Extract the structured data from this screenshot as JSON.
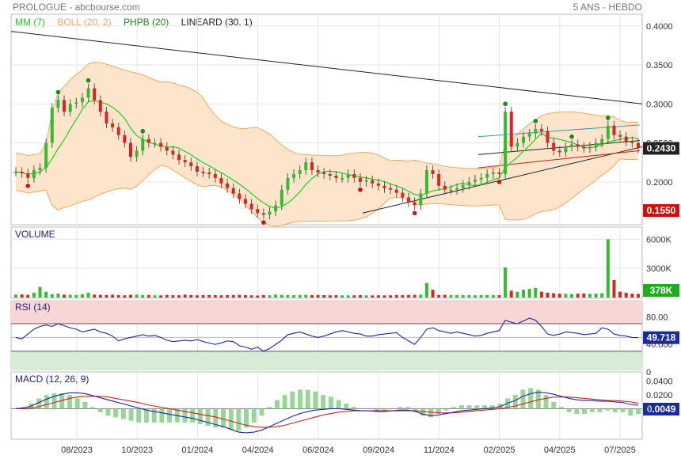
{
  "header": {
    "title": "PROLOGUE - abcbourse.com",
    "period": "5 ANS - HEBDO"
  },
  "legend": [
    {
      "label": "MM (7)",
      "color": "#22cc22"
    },
    {
      "label": "BOLL (20, 2)",
      "color": "#f0a860"
    },
    {
      "label": "PHPB (20)",
      "color": "#1a8a1a"
    },
    {
      "label": "LINEARD (30, 1)",
      "color": "#222222"
    }
  ],
  "colors": {
    "up": "#33bb33",
    "down": "#dd2222",
    "boll_fill": "#fde5cc",
    "boll_line": "#f0a860",
    "ma": "#22cc22",
    "trend": "#222222",
    "rsi": "#1a2aa0",
    "macd": "#1a2aa0",
    "signal": "#cc2222"
  },
  "chart_data": [
    {
      "type": "candlestick",
      "title": "PROLOGUE",
      "x": [
        "08/2023",
        "10/2023",
        "01/2024",
        "04/2024",
        "06/2024",
        "09/2024",
        "11/2024",
        "02/2025",
        "04/2025",
        "07/2025"
      ],
      "y_ticks": [
        "0.4000",
        "0.3500",
        "0.3000",
        "0.2500",
        "0.2000"
      ],
      "ylim": [
        0.145,
        0.415
      ],
      "last_price": "0.2430",
      "low_marker": "0.1550",
      "series_close": [
        0.213,
        0.211,
        0.205,
        0.215,
        0.218,
        0.25,
        0.295,
        0.305,
        0.29,
        0.3,
        0.302,
        0.308,
        0.32,
        0.305,
        0.29,
        0.275,
        0.27,
        0.26,
        0.25,
        0.232,
        0.24,
        0.255,
        0.25,
        0.25,
        0.245,
        0.24,
        0.235,
        0.228,
        0.225,
        0.22,
        0.213,
        0.212,
        0.21,
        0.205,
        0.198,
        0.192,
        0.185,
        0.178,
        0.172,
        0.165,
        0.16,
        0.158,
        0.162,
        0.17,
        0.19,
        0.205,
        0.21,
        0.215,
        0.225,
        0.215,
        0.212,
        0.21,
        0.208,
        0.205,
        0.205,
        0.21,
        0.205,
        0.2,
        0.202,
        0.198,
        0.195,
        0.192,
        0.19,
        0.186,
        0.18,
        0.174,
        0.17,
        0.185,
        0.215,
        0.21,
        0.195,
        0.19,
        0.19,
        0.192,
        0.196,
        0.2,
        0.203,
        0.205,
        0.21,
        0.212,
        0.21,
        0.29,
        0.245,
        0.25,
        0.258,
        0.262,
        0.268,
        0.265,
        0.25,
        0.24,
        0.238,
        0.245,
        0.248,
        0.245,
        0.243,
        0.245,
        0.25,
        0.255,
        0.272,
        0.26,
        0.258,
        0.252,
        0.25,
        0.243
      ],
      "y_axis_label": "",
      "x_axis_label": ""
    },
    {
      "type": "bar",
      "title": "VOLUME",
      "y_ticks": [
        "6000K",
        "3000K"
      ],
      "last_value": "378K",
      "values_k": [
        300,
        320,
        280,
        500,
        1100,
        600,
        350,
        420,
        300,
        280,
        260,
        350,
        500,
        300,
        280,
        260,
        300,
        250,
        230,
        280,
        300,
        250,
        260,
        230,
        220,
        260,
        240,
        230,
        300,
        260,
        230,
        250,
        260,
        250,
        230,
        240,
        260,
        280,
        250,
        230,
        210,
        250,
        230,
        300,
        280,
        250,
        240,
        260,
        280,
        240,
        260,
        250,
        230,
        240,
        230,
        220,
        230,
        240,
        230,
        220,
        230,
        220,
        230,
        260,
        250,
        270,
        280,
        300,
        1500,
        800,
        260,
        280,
        240,
        260,
        250,
        240,
        230,
        250,
        260,
        250,
        240,
        3100,
        700,
        600,
        800,
        900,
        1000,
        600,
        500,
        450,
        400,
        380,
        360,
        400,
        420,
        380,
        400,
        450,
        6000,
        1800,
        600,
        500,
        400,
        378
      ]
    },
    {
      "type": "line",
      "title": "RSI (14)",
      "y_ticks": [
        "80.00",
        "40.000",
        "0"
      ],
      "ylim": [
        0,
        100
      ],
      "overbought": 70,
      "oversold": 30,
      "last_value": "49.718",
      "values": [
        50,
        48,
        55,
        62,
        66,
        68,
        66,
        70,
        67,
        64,
        62,
        58,
        60,
        62,
        58,
        56,
        52,
        45,
        48,
        50,
        52,
        54,
        52,
        53,
        50,
        46,
        44,
        45,
        46,
        45,
        47,
        44,
        42,
        40,
        42,
        45,
        44,
        38,
        36,
        33,
        36,
        30,
        34,
        40,
        46,
        54,
        56,
        58,
        55,
        52,
        50,
        52,
        55,
        58,
        60,
        58,
        56,
        55,
        52,
        52,
        54,
        55,
        56,
        57,
        50,
        45,
        40,
        50,
        62,
        64,
        60,
        58,
        56,
        58,
        56,
        54,
        52,
        53,
        56,
        58,
        60,
        75,
        72,
        70,
        74,
        78,
        75,
        66,
        55,
        53,
        55,
        58,
        57,
        56,
        54,
        55,
        56,
        64,
        62,
        55,
        53,
        52,
        50,
        49.718
      ]
    },
    {
      "type": "line",
      "title": "MACD (12, 26, 9)",
      "y_ticks": [
        "0.0400",
        "0.0200",
        "0"
      ],
      "ylim": [
        -0.042,
        0.05
      ],
      "last_value": "0.0049",
      "macd": [
        0.0,
        0.001,
        0.004,
        0.009,
        0.014,
        0.018,
        0.021,
        0.023,
        0.023,
        0.022,
        0.019,
        0.016,
        0.013,
        0.01,
        0.007,
        0.004,
        0.001,
        -0.002,
        -0.004,
        -0.006,
        -0.008,
        -0.01,
        -0.012,
        -0.014,
        -0.017,
        -0.02,
        -0.023,
        -0.026,
        -0.03,
        -0.034,
        -0.035,
        -0.034,
        -0.031,
        -0.026,
        -0.021,
        -0.016,
        -0.011,
        -0.007,
        -0.004,
        -0.002,
        -0.001,
        0.0,
        0.0,
        -0.001,
        -0.002,
        -0.003,
        -0.003,
        -0.004,
        -0.004,
        -0.003,
        -0.002,
        -0.002,
        -0.004,
        -0.008,
        -0.01,
        -0.009,
        -0.007,
        -0.005,
        -0.003,
        -0.002,
        -0.001,
        0.0,
        0.001,
        0.003,
        0.008,
        0.012,
        0.018,
        0.022,
        0.024,
        0.023,
        0.021,
        0.018,
        0.015,
        0.013,
        0.012,
        0.012,
        0.011,
        0.011,
        0.01,
        0.009,
        0.006,
        0.005
      ],
      "signal": [
        0.0,
        0.0,
        0.001,
        0.003,
        0.006,
        0.009,
        0.012,
        0.015,
        0.017,
        0.018,
        0.018,
        0.018,
        0.017,
        0.015,
        0.013,
        0.011,
        0.009,
        0.006,
        0.004,
        0.002,
        0.0,
        -0.002,
        -0.004,
        -0.006,
        -0.008,
        -0.01,
        -0.012,
        -0.015,
        -0.018,
        -0.021,
        -0.024,
        -0.026,
        -0.027,
        -0.027,
        -0.026,
        -0.024,
        -0.021,
        -0.018,
        -0.015,
        -0.012,
        -0.009,
        -0.007,
        -0.005,
        -0.004,
        -0.003,
        -0.003,
        -0.003,
        -0.003,
        -0.003,
        -0.003,
        -0.003,
        -0.003,
        -0.003,
        -0.004,
        -0.005,
        -0.006,
        -0.006,
        -0.006,
        -0.005,
        -0.004,
        -0.003,
        -0.002,
        -0.001,
        0.0,
        0.002,
        0.004,
        0.007,
        0.01,
        0.013,
        0.015,
        0.017,
        0.017,
        0.017,
        0.016,
        0.015,
        0.014,
        0.013,
        0.012,
        0.012,
        0.011,
        0.01,
        0.008
      ]
    }
  ]
}
